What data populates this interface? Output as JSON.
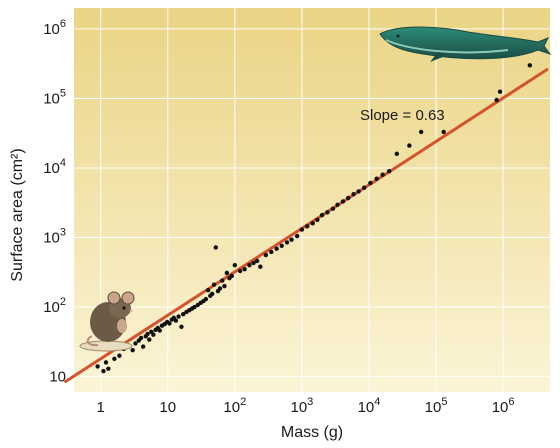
{
  "chart_data": {
    "type": "scatter",
    "title": "",
    "xlabel": "Mass (g)",
    "ylabel": "Surface area (cm²)",
    "xscale": "log",
    "yscale": "log",
    "xlim": [
      0.4,
      5000000
    ],
    "ylim": [
      6,
      2000000
    ],
    "grid": true,
    "x_ticks": [
      {
        "value": 1,
        "mantissa": "1",
        "exp": ""
      },
      {
        "value": 10,
        "mantissa": "10",
        "exp": ""
      },
      {
        "value": 100,
        "mantissa": "10",
        "exp": "2"
      },
      {
        "value": 1000,
        "mantissa": "10",
        "exp": "3"
      },
      {
        "value": 10000,
        "mantissa": "10",
        "exp": "4"
      },
      {
        "value": 100000,
        "mantissa": "10",
        "exp": "5"
      },
      {
        "value": 1000000,
        "mantissa": "10",
        "exp": "6"
      }
    ],
    "y_ticks": [
      {
        "value": 10,
        "mantissa": "10",
        "exp": ""
      },
      {
        "value": 100,
        "mantissa": "10",
        "exp": "2"
      },
      {
        "value": 1000,
        "mantissa": "10",
        "exp": "3"
      },
      {
        "value": 10000,
        "mantissa": "10",
        "exp": "4"
      },
      {
        "value": 100000,
        "mantissa": "10",
        "exp": "5"
      },
      {
        "value": 1000000,
        "mantissa": "10",
        "exp": "6"
      }
    ],
    "annotation": "Slope = 0.63",
    "fit_line": {
      "slope": 0.63,
      "x_start": 0.3,
      "y_start": 8.5,
      "x_end": 4500000,
      "y_end": 260000,
      "color": "#d4532a"
    },
    "points": [
      [
        0.9,
        14
      ],
      [
        1.1,
        12
      ],
      [
        1.2,
        16
      ],
      [
        1.3,
        13
      ],
      [
        1.6,
        18
      ],
      [
        1.9,
        20
      ],
      [
        2.2,
        25
      ],
      [
        2.6,
        28
      ],
      [
        3.0,
        24
      ],
      [
        3.3,
        30
      ],
      [
        3.7,
        33
      ],
      [
        4.0,
        36
      ],
      [
        4.3,
        27
      ],
      [
        4.7,
        38
      ],
      [
        5.0,
        41
      ],
      [
        5.3,
        34
      ],
      [
        5.7,
        44
      ],
      [
        6.1,
        40
      ],
      [
        6.6,
        47
      ],
      [
        7.1,
        50
      ],
      [
        7.6,
        46
      ],
      [
        8.2,
        54
      ],
      [
        9.0,
        57
      ],
      [
        9.8,
        61
      ],
      [
        10.6,
        58
      ],
      [
        11.5,
        66
      ],
      [
        12.3,
        70
      ],
      [
        13.2,
        64
      ],
      [
        14.5,
        73
      ],
      [
        16,
        52
      ],
      [
        17,
        79
      ],
      [
        19,
        85
      ],
      [
        21,
        90
      ],
      [
        23,
        95
      ],
      [
        25,
        100
      ],
      [
        28,
        107
      ],
      [
        31,
        115
      ],
      [
        34,
        122
      ],
      [
        37,
        130
      ],
      [
        40,
        175
      ],
      [
        43,
        145
      ],
      [
        46,
        155
      ],
      [
        49,
        210
      ],
      [
        52,
        720
      ],
      [
        56,
        170
      ],
      [
        60,
        185
      ],
      [
        65,
        240
      ],
      [
        70,
        200
      ],
      [
        76,
        310
      ],
      [
        83,
        260
      ],
      [
        90,
        280
      ],
      [
        100,
        400
      ],
      [
        120,
        330
      ],
      [
        140,
        350
      ],
      [
        165,
        400
      ],
      [
        190,
        430
      ],
      [
        215,
        460
      ],
      [
        240,
        380
      ],
      [
        290,
        560
      ],
      [
        350,
        620
      ],
      [
        420,
        690
      ],
      [
        500,
        760
      ],
      [
        600,
        850
      ],
      [
        700,
        930
      ],
      [
        850,
        1050
      ],
      [
        1000,
        1300
      ],
      [
        1200,
        1450
      ],
      [
        1450,
        1600
      ],
      [
        1700,
        1800
      ],
      [
        2000,
        2100
      ],
      [
        2400,
        2300
      ],
      [
        2900,
        2600
      ],
      [
        3400,
        2950
      ],
      [
        4100,
        3300
      ],
      [
        4900,
        3700
      ],
      [
        5900,
        4200
      ],
      [
        7000,
        4600
      ],
      [
        8500,
        5200
      ],
      [
        10500,
        6100
      ],
      [
        13000,
        7000
      ],
      [
        16000,
        8000
      ],
      [
        20000,
        9000
      ],
      [
        26000,
        16000
      ],
      [
        40000,
        21000
      ],
      [
        60000,
        33000
      ],
      [
        130000,
        33000
      ],
      [
        800000,
        95000
      ],
      [
        900000,
        125000
      ],
      [
        2500000,
        300000
      ]
    ],
    "colors": {
      "background_top": "#ead484",
      "background_bottom": "#fbf4d6",
      "grid": "#ffffff",
      "point": "#111111"
    }
  },
  "images": {
    "whale": "whale-illustration",
    "mouse": "mouse-illustration"
  }
}
